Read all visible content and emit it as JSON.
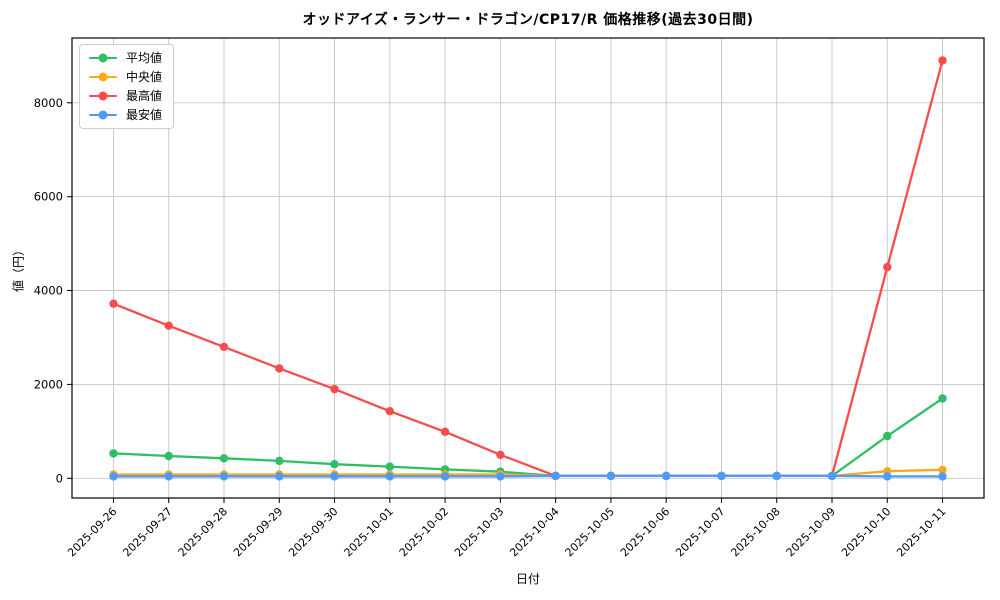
{
  "title": "オッドアイズ・ランサー・ドラゴン/CP17/R 価格推移(過去30日間)",
  "chart_data": {
    "type": "line",
    "title": "オッドアイズ・ランサー・ドラゴン/CP17/R 価格推移(過去30日間)",
    "xlabel": "日付",
    "ylabel": "値（円）",
    "x": [
      "2025-09-26",
      "2025-09-27",
      "2025-09-28",
      "2025-09-29",
      "2025-09-30",
      "2025-10-01",
      "2025-10-02",
      "2025-10-03",
      "2025-10-04",
      "2025-10-05",
      "2025-10-06",
      "2025-10-07",
      "2025-10-08",
      "2025-10-09",
      "2025-10-10",
      "2025-10-11"
    ],
    "series": [
      {
        "name": "平均値",
        "color": "#30bd63",
        "values": [
          530,
          475,
          425,
          370,
          300,
          250,
          190,
          140,
          50,
          50,
          50,
          50,
          50,
          50,
          900,
          1700
        ]
      },
      {
        "name": "中央値",
        "color": "#ffa51e",
        "values": [
          80,
          80,
          80,
          80,
          80,
          80,
          80,
          80,
          50,
          50,
          50,
          50,
          50,
          50,
          150,
          180
        ]
      },
      {
        "name": "最高値",
        "color": "#f84c4c",
        "values": [
          3720,
          3250,
          2800,
          2340,
          1900,
          1430,
          990,
          500,
          50,
          50,
          50,
          50,
          50,
          50,
          4500,
          8900
        ]
      },
      {
        "name": "最安値",
        "color": "#4b9bf8",
        "values": [
          40,
          40,
          40,
          40,
          40,
          40,
          40,
          40,
          50,
          50,
          50,
          50,
          50,
          50,
          40,
          40
        ]
      }
    ],
    "yticks": [
      0,
      2000,
      4000,
      6000,
      8000
    ],
    "ylim": [
      -420,
      9380
    ],
    "grid": true,
    "grid_color": "#c6c6c6",
    "axis_color": "#000000",
    "legend_position": "upper left"
  }
}
